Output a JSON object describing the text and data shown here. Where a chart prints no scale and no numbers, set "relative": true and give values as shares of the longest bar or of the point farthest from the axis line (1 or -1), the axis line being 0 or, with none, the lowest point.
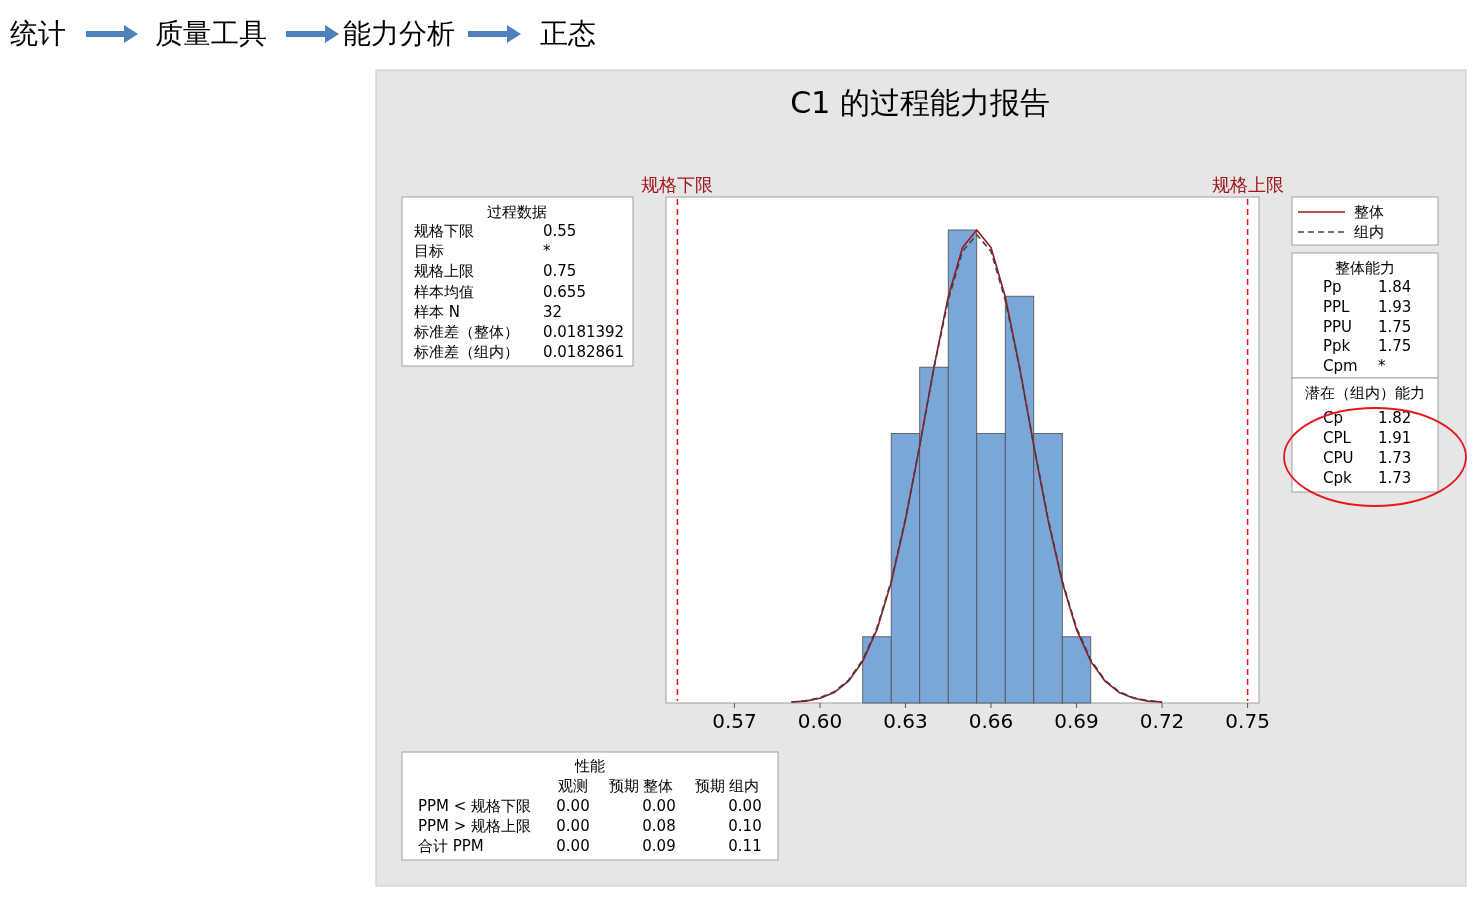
{
  "chart_data": {
    "type": "histogram",
    "title": "C1 的过程能力报告",
    "relative": true,
    "bins": [
      0.615,
      0.625,
      0.635,
      0.645,
      0.655,
      0.665,
      0.675,
      0.685,
      0.695
    ],
    "values": [
      0.14,
      0.57,
      0.71,
      1,
      0.57,
      0.86,
      0.57,
      0.14
    ],
    "color": "#7ba7d8",
    "series": [
      {
        "name": "整体",
        "type": "line",
        "color": "#a0141e",
        "line_style": "solid",
        "x": [
          0.59,
          0.595,
          0.6,
          0.605,
          0.61,
          0.615,
          0.62,
          0.625,
          0.63,
          0.635,
          0.64,
          0.645,
          0.65,
          0.655,
          0.66,
          0.665,
          0.67,
          0.675,
          0.68,
          0.685,
          0.69,
          0.695,
          0.7,
          0.705,
          0.71,
          0.715,
          0.72
        ],
        "values": [
          0.002,
          0.004,
          0.01,
          0.022,
          0.046,
          0.088,
          0.155,
          0.255,
          0.387,
          0.544,
          0.71,
          0.859,
          0.963,
          1,
          0.963,
          0.859,
          0.71,
          0.544,
          0.387,
          0.255,
          0.155,
          0.088,
          0.046,
          0.022,
          0.01,
          0.004,
          0.002
        ]
      },
      {
        "name": "组内",
        "type": "line",
        "color": "#404040",
        "line_style": "dashed",
        "x": [
          0.59,
          0.595,
          0.6,
          0.605,
          0.61,
          0.615,
          0.62,
          0.625,
          0.63,
          0.635,
          0.64,
          0.645,
          0.65,
          0.655,
          0.66,
          0.665,
          0.67,
          0.675,
          0.68,
          0.685,
          0.69,
          0.695,
          0.7,
          0.705,
          0.71,
          0.715,
          0.72
        ],
        "values": [
          0.002,
          0.005,
          0.011,
          0.024,
          0.048,
          0.091,
          0.159,
          0.258,
          0.39,
          0.545,
          0.709,
          0.852,
          0.955,
          0.99,
          0.955,
          0.852,
          0.709,
          0.545,
          0.39,
          0.258,
          0.159,
          0.091,
          0.048,
          0.024,
          0.011,
          0.005,
          0.002
        ]
      }
    ],
    "xlim": [
      0.546,
      0.754
    ],
    "xticks": [
      0.57,
      {
        "value": 0.6,
        "label": "0.60"
      },
      0.63,
      0.66,
      0.69,
      0.72,
      0.75
    ],
    "ref_lines": [
      {
        "axis": "x",
        "value": 0.55,
        "label": "规格下限",
        "color": "#e8141e",
        "line_style": "dashed"
      },
      {
        "axis": "x",
        "value": 0.75,
        "label": "规格上限",
        "color": "#e8141e",
        "line_style": "dashed"
      }
    ],
    "legend": "top right",
    "grid": false,
    "marker": "none",
    "annotations": [
      "统计",
      "质量工具",
      "能力分析",
      "正态",
      "过程数据",
      "规格下限",
      "0.55",
      "目标",
      "*",
      "规格上限",
      "0.75",
      "样本均值",
      "0.655",
      "样本 N",
      "32",
      "标准差（整体）",
      "0.0181392",
      "标准差（组内）",
      "0.0182861",
      "整体能力",
      "Pp",
      "1.84",
      "PPL",
      "1.93",
      "PPU",
      "1.75",
      "Ppk",
      "1.75",
      "Cpm",
      "*",
      "潜在（组内）能力",
      "Cp",
      "1.82",
      "CPL",
      "1.91",
      "CPU",
      "1.73",
      "Cpk",
      "1.73",
      "性能",
      "观测",
      "预期 整体",
      "预期 组内",
      "PPM < 规格下限",
      "0.00",
      "0.00",
      "0.00",
      "PPM > 规格上限",
      "0.00",
      "0.08",
      "0.10",
      "合计 PPM",
      "0.00",
      "0.09",
      "0.11"
    ]
  }
}
